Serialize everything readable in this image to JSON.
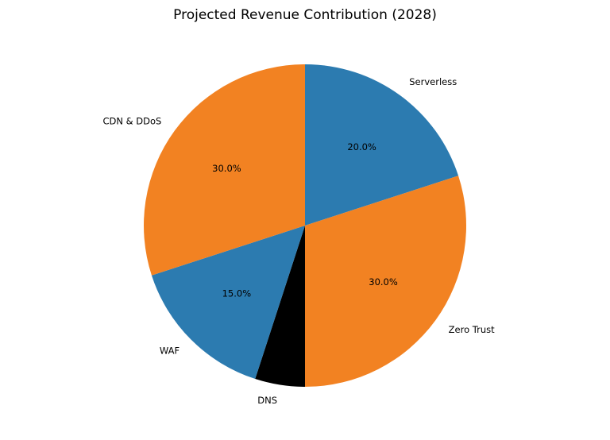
{
  "chart_data": {
    "type": "pie",
    "title": "Projected Revenue Contribution (2028)",
    "start_angle_deg": 90,
    "direction": "clockwise",
    "legend": "none",
    "slices": [
      {
        "label": "Serverless",
        "value": 20.0,
        "pct_label": "20.0%",
        "color": "#2c7bb0"
      },
      {
        "label": "Zero Trust",
        "value": 30.0,
        "pct_label": "30.0%",
        "color": "#f28222"
      },
      {
        "label": "DNS",
        "value": 5.0,
        "pct_label": "",
        "color": "#000000"
      },
      {
        "label": "WAF",
        "value": 15.0,
        "pct_label": "15.0%",
        "color": "#2c7bb0"
      },
      {
        "label": "CDN & DDoS",
        "value": 30.0,
        "pct_label": "30.0%",
        "color": "#f28222"
      }
    ]
  }
}
